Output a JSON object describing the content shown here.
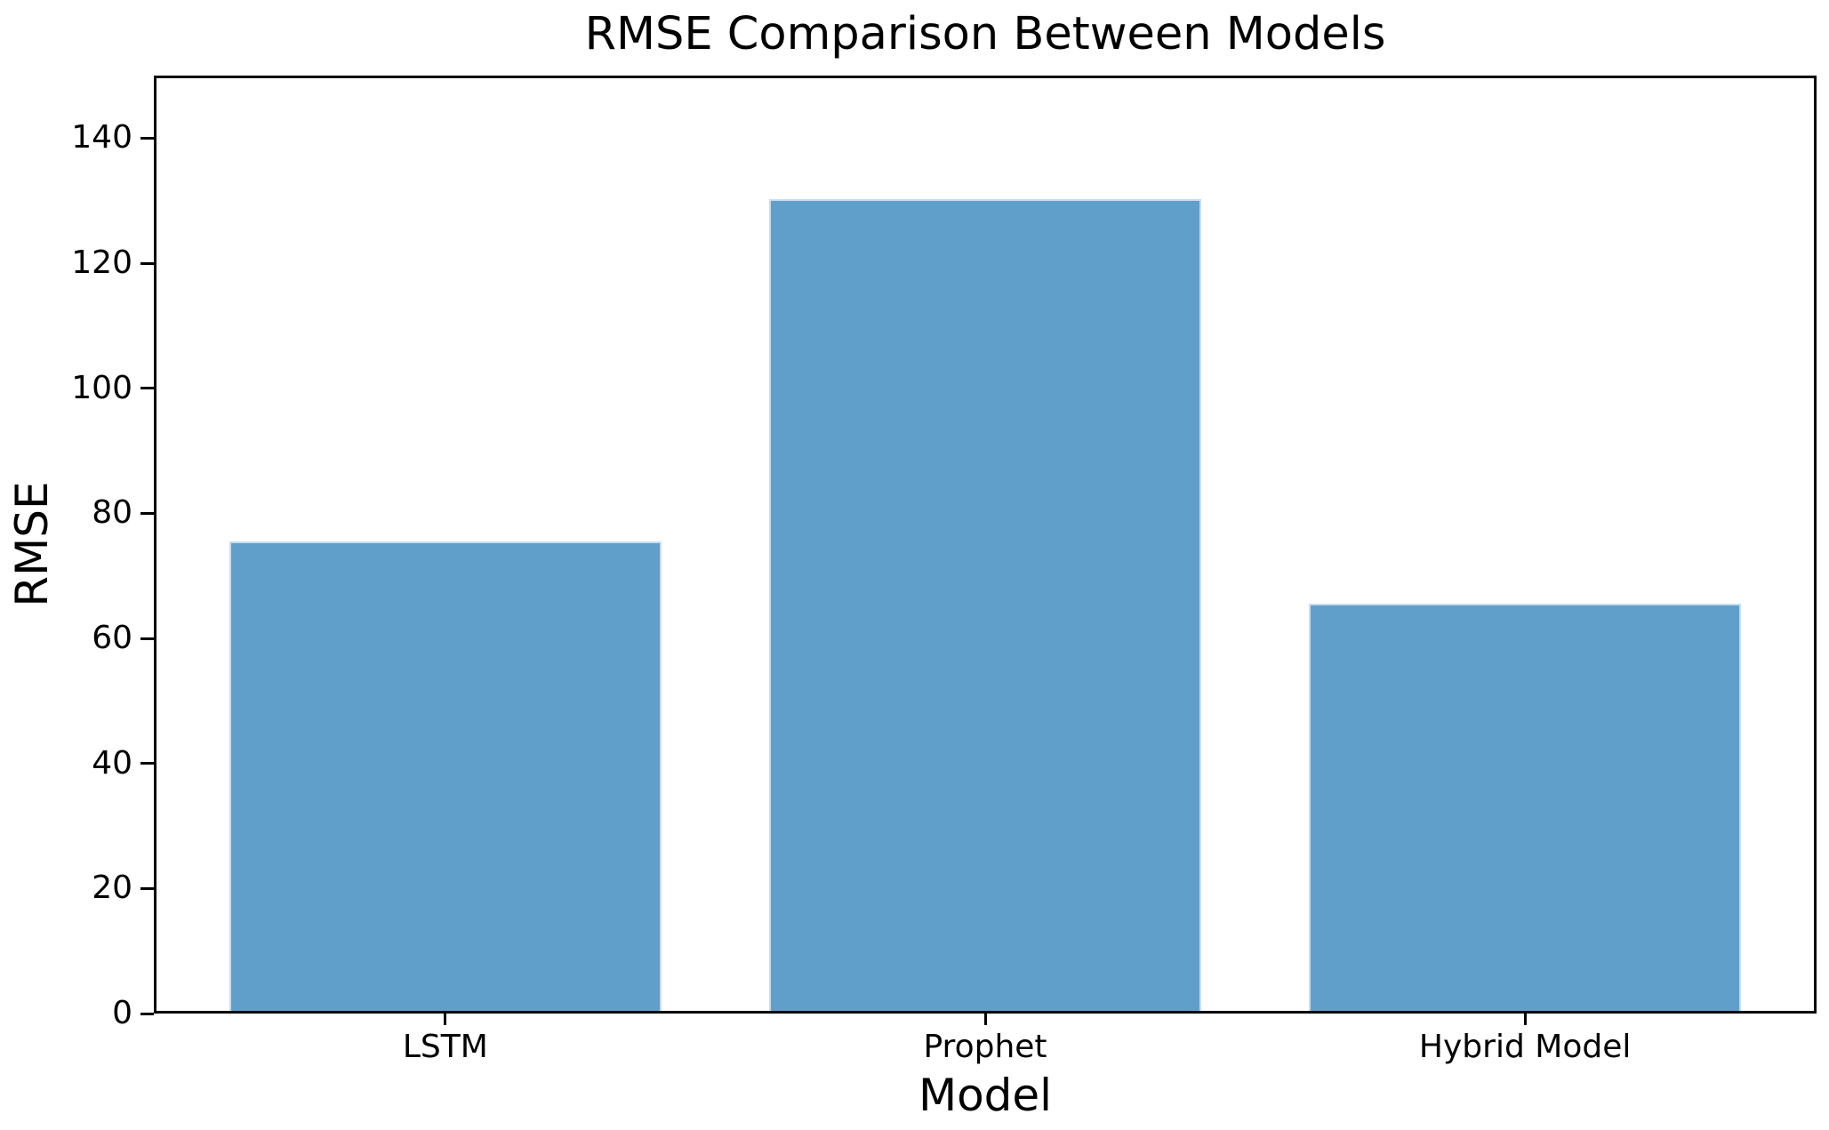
{
  "figure": {
    "background_color": "#ffffff",
    "text_color": "#000000"
  },
  "chart_data": {
    "type": "bar",
    "title": "RMSE Comparison Between Models",
    "xlabel": "Model",
    "ylabel": "RMSE",
    "categories": [
      "LSTM",
      "Prophet",
      "Hybrid Model"
    ],
    "values": [
      75.5,
      130.3,
      65.5
    ],
    "series_name": "RMSE",
    "ylim": [
      0,
      150
    ],
    "yticks": [
      0,
      20,
      40,
      60,
      80,
      100,
      120,
      140
    ],
    "grid": false,
    "legend": false,
    "bar_width_fraction": 0.8,
    "bar_color": "#609fca",
    "bar_edge_color": "#c6ddef",
    "axis_color": "#000000"
  }
}
